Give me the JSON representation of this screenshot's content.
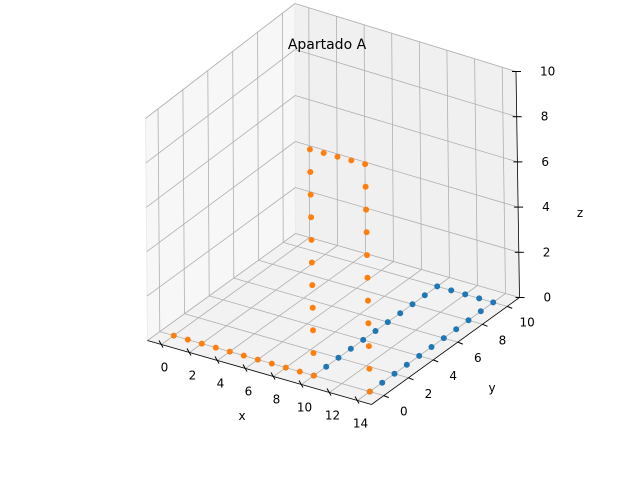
{
  "chart_data": {
    "type": "scatter",
    "title": "Apartado A",
    "xlabel": "x",
    "ylabel": "y",
    "zlabel": "z",
    "xlim": [
      -1,
      15
    ],
    "ylim": [
      -1,
      11
    ],
    "zlim": [
      0,
      10
    ],
    "x_ticks": [
      0,
      2,
      4,
      6,
      8,
      10,
      12,
      14
    ],
    "y_ticks": [
      0,
      2,
      4,
      6,
      8,
      10
    ],
    "z_ticks": [
      0,
      2,
      4,
      6,
      8,
      10
    ],
    "grid": true,
    "series": [
      {
        "color": "#1f77b4",
        "points": [
          [
            10,
            0,
            0
          ],
          [
            10,
            1,
            0
          ],
          [
            10,
            2,
            0
          ],
          [
            10,
            3,
            0
          ],
          [
            10,
            4,
            0
          ],
          [
            10,
            5,
            0
          ],
          [
            10,
            6,
            0
          ],
          [
            10,
            7,
            0
          ],
          [
            10,
            8,
            0
          ],
          [
            10,
            9,
            0
          ],
          [
            10,
            10,
            0
          ],
          [
            14,
            0,
            0
          ],
          [
            14,
            1,
            0
          ],
          [
            14,
            2,
            0
          ],
          [
            14,
            3,
            0
          ],
          [
            14,
            4,
            0
          ],
          [
            14,
            5,
            0
          ],
          [
            14,
            6,
            0
          ],
          [
            14,
            7,
            0
          ],
          [
            14,
            8,
            0
          ],
          [
            14,
            9,
            0
          ],
          [
            14,
            10,
            0
          ],
          [
            11,
            10,
            0
          ],
          [
            12,
            10,
            0
          ],
          [
            13,
            10,
            0
          ]
        ]
      },
      {
        "color": "#ff7f0e",
        "points": [
          [
            0,
            0,
            0
          ],
          [
            1,
            0,
            0
          ],
          [
            2,
            0,
            0
          ],
          [
            3,
            0,
            0
          ],
          [
            4,
            0,
            0
          ],
          [
            5,
            0,
            0
          ],
          [
            6,
            0,
            0
          ],
          [
            7,
            0,
            0
          ],
          [
            8,
            0,
            0
          ],
          [
            9,
            0,
            0
          ],
          [
            10,
            0,
            0
          ],
          [
            10,
            0,
            1
          ],
          [
            10,
            0,
            2
          ],
          [
            10,
            0,
            3
          ],
          [
            10,
            0,
            4
          ],
          [
            10,
            0,
            5
          ],
          [
            10,
            0,
            6
          ],
          [
            10,
            0,
            7
          ],
          [
            10,
            0,
            8
          ],
          [
            10,
            0,
            9
          ],
          [
            10,
            0,
            10
          ],
          [
            14,
            0,
            0
          ],
          [
            14,
            0,
            1
          ],
          [
            14,
            0,
            2
          ],
          [
            14,
            0,
            3
          ],
          [
            14,
            0,
            4
          ],
          [
            14,
            0,
            5
          ],
          [
            14,
            0,
            6
          ],
          [
            14,
            0,
            7
          ],
          [
            14,
            0,
            8
          ],
          [
            14,
            0,
            9
          ],
          [
            14,
            0,
            10
          ],
          [
            11,
            0,
            10
          ],
          [
            12,
            0,
            10
          ],
          [
            13,
            0,
            10
          ]
        ]
      }
    ]
  }
}
